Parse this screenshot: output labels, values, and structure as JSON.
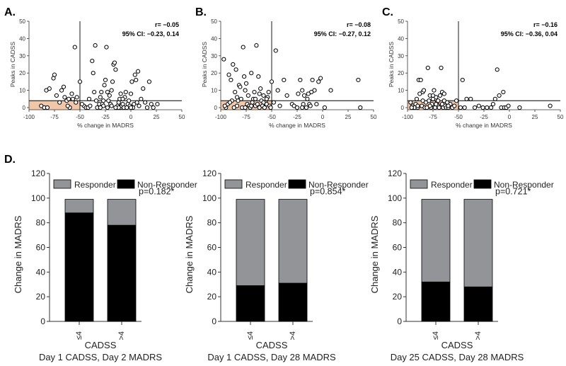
{
  "panel_letters": {
    "a": "A.",
    "b": "B.",
    "c": "C.",
    "d": "D."
  },
  "colors": {
    "shade": "#f2c6a8",
    "responder": "#929497",
    "nonresponder": "#000000",
    "axis": "#333333"
  },
  "chart_data": [
    {
      "type": "scatter",
      "panel": "A.",
      "xlabel": "% change in MADRS",
      "ylabel": "Peaks in CADSS",
      "xlim": [
        -100,
        50
      ],
      "ylim": [
        0,
        50
      ],
      "xticks": [
        "-100",
        "-75",
        "-50",
        "-25",
        "0",
        "25",
        "50"
      ],
      "yticks": [
        "0",
        "10",
        "20",
        "30",
        "40",
        "50"
      ],
      "stat_r": "r= −0.05",
      "stat_ci": "95% CI: −0.23, 0.14",
      "ref_x": -50,
      "ref_y": 4,
      "points": [
        [
          -88,
          1
        ],
        [
          -85,
          0
        ],
        [
          -82,
          0
        ],
        [
          -83,
          10
        ],
        [
          -80,
          11
        ],
        [
          -76,
          17
        ],
        [
          -75,
          19
        ],
        [
          -73,
          7
        ],
        [
          -70,
          3
        ],
        [
          -68,
          10
        ],
        [
          -66,
          12
        ],
        [
          -65,
          6
        ],
        [
          -63,
          4
        ],
        [
          -61,
          5
        ],
        [
          -60,
          0
        ],
        [
          -58,
          8
        ],
        [
          -57,
          5
        ],
        [
          -55,
          35
        ],
        [
          -53,
          6
        ],
        [
          -50,
          15
        ],
        [
          -46,
          1
        ],
        [
          -44,
          0
        ],
        [
          -42,
          0
        ],
        [
          -40,
          1
        ],
        [
          -38,
          27
        ],
        [
          -37,
          20
        ],
        [
          -35,
          36
        ],
        [
          -34,
          4
        ],
        [
          -33,
          0
        ],
        [
          -31,
          2
        ],
        [
          -30,
          6
        ],
        [
          -29,
          9
        ],
        [
          -28,
          2
        ],
        [
          -27,
          1
        ],
        [
          -26,
          13
        ],
        [
          -25,
          16
        ],
        [
          -24,
          35
        ],
        [
          -23,
          0
        ],
        [
          -22,
          4
        ],
        [
          -21,
          7
        ],
        [
          -20,
          2
        ],
        [
          -19,
          10
        ],
        [
          -18,
          15
        ],
        [
          -17,
          25
        ],
        [
          -16,
          26
        ],
        [
          -15,
          22
        ],
        [
          -14,
          0
        ],
        [
          -13,
          1
        ],
        [
          -12,
          3
        ],
        [
          -11,
          5
        ],
        [
          -10,
          0
        ],
        [
          -9,
          1
        ],
        [
          -8,
          2
        ],
        [
          -7,
          0
        ],
        [
          -6,
          6
        ],
        [
          -5,
          9
        ],
        [
          -4,
          0
        ],
        [
          -3,
          2
        ],
        [
          -2,
          4
        ],
        [
          -1,
          1
        ],
        [
          0,
          8
        ],
        [
          1,
          15
        ],
        [
          2,
          0
        ],
        [
          3,
          2
        ],
        [
          4,
          19
        ],
        [
          5,
          16
        ],
        [
          6,
          3
        ],
        [
          7,
          21
        ],
        [
          8,
          1
        ],
        [
          10,
          5
        ],
        [
          12,
          11
        ],
        [
          14,
          3
        ],
        [
          16,
          0
        ],
        [
          18,
          15
        ],
        [
          20,
          2
        ],
        [
          22,
          0
        ],
        [
          26,
          2
        ],
        [
          -30,
          0
        ],
        [
          -27,
          4
        ],
        [
          -19,
          1
        ],
        [
          -12,
          0
        ],
        [
          -8,
          5
        ],
        [
          0,
          0
        ],
        [
          -15,
          0
        ],
        [
          -41,
          5
        ],
        [
          -48,
          2
        ],
        [
          -62,
          1
        ],
        [
          -54,
          3
        ],
        [
          -36,
          9
        ],
        [
          -23,
          9
        ],
        [
          -10,
          8
        ]
      ]
    },
    {
      "type": "scatter",
      "panel": "B.",
      "xlabel": "% change in MADRS",
      "ylabel": "Peaks in CADSS",
      "xlim": [
        -100,
        50
      ],
      "ylim": [
        0,
        50
      ],
      "xticks": [
        "-100",
        "-75",
        "-50",
        "-25",
        "0",
        "25",
        "50"
      ],
      "yticks": [
        "0",
        "10",
        "20",
        "30",
        "40",
        "50"
      ],
      "stat_r": "r= −0.08",
      "stat_ci": "95% CI: −0.27, 0.12",
      "ref_x": -50,
      "ref_y": 4,
      "points": [
        [
          -97,
          28
        ],
        [
          -95,
          0
        ],
        [
          -93,
          2
        ],
        [
          -92,
          19
        ],
        [
          -90,
          16
        ],
        [
          -88,
          25
        ],
        [
          -87,
          0
        ],
        [
          -86,
          9
        ],
        [
          -85,
          22
        ],
        [
          -84,
          1
        ],
        [
          -83,
          4
        ],
        [
          -82,
          13
        ],
        [
          -81,
          12
        ],
        [
          -80,
          5
        ],
        [
          -79,
          0
        ],
        [
          -78,
          35
        ],
        [
          -77,
          18
        ],
        [
          -76,
          10
        ],
        [
          -75,
          14
        ],
        [
          -74,
          2
        ],
        [
          -73,
          7
        ],
        [
          -72,
          1
        ],
        [
          -71,
          0
        ],
        [
          -70,
          20
        ],
        [
          -69,
          3
        ],
        [
          -68,
          5
        ],
        [
          -67,
          9
        ],
        [
          -66,
          1
        ],
        [
          -65,
          36
        ],
        [
          -64,
          2
        ],
        [
          -63,
          18
        ],
        [
          -62,
          0
        ],
        [
          -61,
          11
        ],
        [
          -60,
          4
        ],
        [
          -59,
          1
        ],
        [
          -58,
          7
        ],
        [
          -57,
          0
        ],
        [
          -56,
          3
        ],
        [
          -55,
          2
        ],
        [
          -54,
          6
        ],
        [
          -52,
          1
        ],
        [
          -51,
          0
        ],
        [
          -50,
          15
        ],
        [
          -48,
          3
        ],
        [
          -46,
          33
        ],
        [
          -44,
          10
        ],
        [
          -42,
          1
        ],
        [
          -38,
          16
        ],
        [
          -35,
          7
        ],
        [
          -30,
          2
        ],
        [
          -28,
          1
        ],
        [
          -25,
          0
        ],
        [
          -22,
          16
        ],
        [
          -20,
          10
        ],
        [
          -18,
          7
        ],
        [
          -16,
          0
        ],
        [
          -15,
          5
        ],
        [
          -13,
          2
        ],
        [
          -12,
          1
        ],
        [
          -10,
          16
        ],
        [
          -8,
          10
        ],
        [
          -6,
          2
        ],
        [
          -4,
          15
        ],
        [
          -2,
          17
        ],
        [
          2,
          0
        ],
        [
          8,
          10
        ],
        [
          35,
          16
        ],
        [
          37,
          0
        ],
        [
          -20,
          0
        ],
        [
          -11,
          9
        ],
        [
          -14,
          8
        ],
        [
          -19,
          2
        ],
        [
          -24,
          8
        ],
        [
          -53,
          9
        ],
        [
          -89,
          4
        ],
        [
          -91,
          3
        ],
        [
          -96,
          1
        ],
        [
          -58,
          3
        ],
        [
          -66,
          5
        ],
        [
          -70,
          1
        ],
        [
          -76,
          0
        ],
        [
          -84,
          6
        ],
        [
          -62,
          8
        ],
        [
          -55,
          5
        ]
      ]
    },
    {
      "type": "scatter",
      "panel": "C.",
      "xlabel": "% change in MADRS",
      "ylabel": "Peaks in CADSS",
      "xlim": [
        -100,
        50
      ],
      "ylim": [
        0,
        50
      ],
      "xticks": [
        "-100",
        "-75",
        "-50",
        "-25",
        "0",
        "25",
        "50"
      ],
      "yticks": [
        "0",
        "10",
        "20",
        "30",
        "40",
        "50"
      ],
      "stat_r": "r= −0.16",
      "stat_ci": "95% CI: −0.36, 0.04",
      "ref_x": -50,
      "ref_y": 4,
      "points": [
        [
          -97,
          3
        ],
        [
          -95,
          1
        ],
        [
          -94,
          0
        ],
        [
          -93,
          0
        ],
        [
          -92,
          2
        ],
        [
          -91,
          5
        ],
        [
          -90,
          0
        ],
        [
          -89,
          16
        ],
        [
          -88,
          8
        ],
        [
          -87,
          16
        ],
        [
          -86,
          1
        ],
        [
          -85,
          9
        ],
        [
          -84,
          10
        ],
        [
          -83,
          0
        ],
        [
          -82,
          3
        ],
        [
          -81,
          0
        ],
        [
          -80,
          23
        ],
        [
          -79,
          4
        ],
        [
          -78,
          7
        ],
        [
          -77,
          0
        ],
        [
          -76,
          2
        ],
        [
          -75,
          5
        ],
        [
          -74,
          10
        ],
        [
          -73,
          0
        ],
        [
          -72,
          6
        ],
        [
          -71,
          3
        ],
        [
          -70,
          1
        ],
        [
          -69,
          0
        ],
        [
          -68,
          7
        ],
        [
          -67,
          23
        ],
        [
          -66,
          2
        ],
        [
          -65,
          0
        ],
        [
          -64,
          4
        ],
        [
          -63,
          1
        ],
        [
          -62,
          0
        ],
        [
          -61,
          3
        ],
        [
          -60,
          0
        ],
        [
          -58,
          2
        ],
        [
          -56,
          0
        ],
        [
          -54,
          1
        ],
        [
          -52,
          4
        ],
        [
          -48,
          0
        ],
        [
          -46,
          16
        ],
        [
          -44,
          0
        ],
        [
          -42,
          5
        ],
        [
          -38,
          5
        ],
        [
          -34,
          0
        ],
        [
          -30,
          1
        ],
        [
          -26,
          0
        ],
        [
          -22,
          0
        ],
        [
          -18,
          0
        ],
        [
          -16,
          2
        ],
        [
          -14,
          5
        ],
        [
          -12,
          22
        ],
        [
          -10,
          7
        ],
        [
          -8,
          0
        ],
        [
          -6,
          9
        ],
        [
          -5,
          0
        ],
        [
          -3,
          0
        ],
        [
          -1,
          1
        ],
        [
          10,
          0
        ],
        [
          40,
          1
        ],
        [
          -75,
          7
        ],
        [
          -70,
          4
        ],
        [
          -60,
          1
        ],
        [
          -85,
          4
        ],
        [
          -78,
          1
        ],
        [
          -66,
          9
        ],
        [
          -90,
          1
        ],
        [
          -96,
          0
        ],
        [
          -72,
          2
        ],
        [
          -64,
          8
        ]
      ]
    },
    {
      "type": "bar",
      "stacked": true,
      "ylabel": "Change in MADRS",
      "xlabel": "CADSS",
      "subtitle": "Day 1 CADSS, Day 2 MADRS",
      "categories": [
        "≤4",
        ">4"
      ],
      "ylim": [
        0,
        120
      ],
      "yticks": [
        "0",
        "20",
        "40",
        "60",
        "80",
        "100",
        "120"
      ],
      "legend": [
        "Responder",
        "Non-Responder"
      ],
      "pvalue": "p=0.182*",
      "series": [
        {
          "name": "Non-Responder",
          "values": [
            88,
            78
          ]
        },
        {
          "name": "Responder",
          "values": [
            11,
            21
          ]
        }
      ]
    },
    {
      "type": "bar",
      "stacked": true,
      "ylabel": "Change in MADRS",
      "xlabel": "CADSS",
      "subtitle": "Day 1 CADSS, Day 28 MADRS",
      "categories": [
        "≤4",
        ">4"
      ],
      "ylim": [
        0,
        120
      ],
      "yticks": [
        "0",
        "20",
        "40",
        "60",
        "80",
        "100",
        "120"
      ],
      "legend": [
        "Responder",
        "Non-Responder"
      ],
      "pvalue": "p=0.854*",
      "series": [
        {
          "name": "Non-Responder",
          "values": [
            29,
            31
          ]
        },
        {
          "name": "Responder",
          "values": [
            70,
            68
          ]
        }
      ]
    },
    {
      "type": "bar",
      "stacked": true,
      "ylabel": "Change in MADRS",
      "xlabel": "CADSS",
      "subtitle": "Day 25 CADSS, Day 28 MADRS",
      "categories": [
        "≤4",
        ">4"
      ],
      "ylim": [
        0,
        120
      ],
      "yticks": [
        "0",
        "20",
        "40",
        "60",
        "80",
        "100",
        "120"
      ],
      "legend": [
        "Responder",
        "Non-Responder"
      ],
      "pvalue": "p=0.721*",
      "series": [
        {
          "name": "Non-Responder",
          "values": [
            32,
            28
          ]
        },
        {
          "name": "Responder",
          "values": [
            67,
            71
          ]
        }
      ]
    }
  ]
}
